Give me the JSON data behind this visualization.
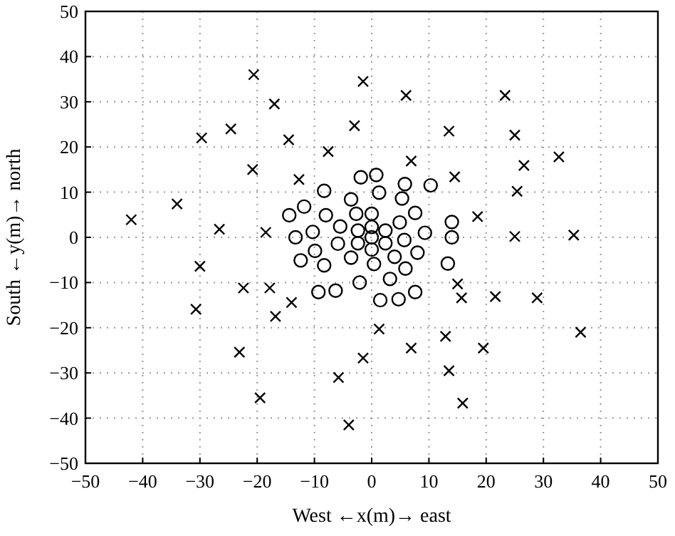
{
  "chart_data": {
    "type": "scatter",
    "xlabel": "West ←x(m)→ east",
    "ylabel": "South ←y(m)→ north",
    "xlim": [
      -50,
      50
    ],
    "ylim": [
      -50,
      50
    ],
    "xticks": [
      -50,
      -40,
      -30,
      -20,
      -10,
      0,
      10,
      20,
      30,
      40,
      50
    ],
    "yticks": [
      -50,
      -40,
      -30,
      -20,
      -10,
      0,
      10,
      20,
      30,
      40,
      50
    ],
    "grid": true,
    "series": [
      {
        "color": "#000000",
        "marker": "circle",
        "x": [
          -1.9,
          0.8,
          1.3,
          5.8,
          5.3,
          -3.6,
          -8.3,
          -11.8,
          -14.4,
          -8,
          -2.7,
          0,
          -5.5,
          -2.4,
          0,
          2.4,
          4.9,
          7.6,
          -10.3,
          -13.3,
          -5.9,
          -2.4,
          0,
          2.4,
          5.7,
          8,
          -9.9,
          -3.6,
          0,
          0.4,
          4,
          5.9,
          -12.4,
          -8.3,
          -2.1,
          3.2,
          -9.3,
          -6.3,
          1.5,
          4.7,
          7.6,
          10.3,
          14,
          9.3,
          14,
          13.3
        ],
        "values": [
          13.3,
          13.8,
          9.9,
          11.8,
          8.6,
          8.4,
          10.3,
          6.8,
          4.9,
          4.9,
          5.2,
          5.2,
          2.4,
          1.5,
          2.3,
          1.5,
          3.3,
          5.4,
          1.2,
          0,
          -1.4,
          -1.3,
          0,
          -1.3,
          -0.6,
          -3.4,
          -3,
          -4.5,
          -2.7,
          -5.9,
          -4.3,
          -6.9,
          -5.1,
          -6.2,
          -10,
          -9.2,
          -12.1,
          -11.8,
          -13.9,
          -13.7,
          -12.1,
          11.5,
          3.4,
          1,
          0,
          -5.8
        ]
      },
      {
        "color": "#000000",
        "marker": "cross",
        "x": [
          -20.6,
          -17,
          -29.7,
          -24.6,
          -14.5,
          -7.6,
          -1.5,
          -3,
          -20.8,
          -12.7,
          -34,
          -42,
          -26.6,
          -18.5,
          6,
          23.3,
          13.5,
          25,
          32.7,
          26.6,
          6.9,
          14.5,
          25.4,
          18.5,
          25,
          35.3,
          -30,
          -22.4,
          -17.8,
          -14,
          -16.8,
          -30.7,
          -23.1,
          -19.5,
          -5.8,
          -1.5,
          -4,
          1.3,
          15,
          15.7,
          21.6,
          28.9,
          36.5,
          12.9,
          6.9,
          19.5,
          13.5,
          15.9
        ],
        "values": [
          36,
          29.5,
          22,
          24,
          21.6,
          19,
          34.5,
          24.7,
          15,
          12.8,
          7.4,
          3.9,
          1.8,
          1.1,
          31.4,
          31.4,
          23.5,
          22.6,
          17.8,
          15.9,
          16.9,
          13.4,
          10.2,
          4.6,
          0.2,
          0.5,
          -6.4,
          -11.2,
          -11.2,
          -14.4,
          -17.5,
          -15.9,
          -25.4,
          -35.5,
          -31,
          -26.7,
          -41.5,
          -20.3,
          -10.3,
          -13.4,
          -13.1,
          -13.4,
          -21,
          -21.9,
          -24.5,
          -24.5,
          -29.5,
          -36.7
        ]
      }
    ]
  }
}
